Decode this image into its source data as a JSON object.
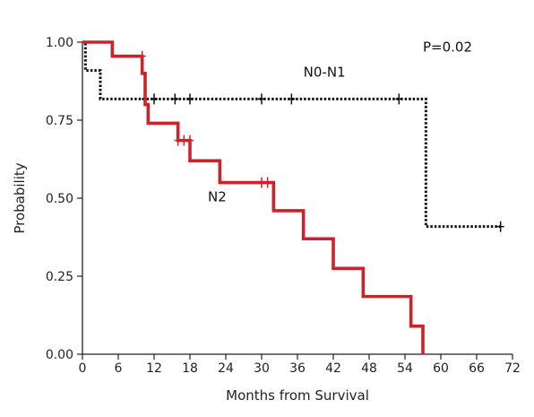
{
  "chart_data": {
    "type": "line",
    "subtype": "kaplan-meier",
    "title": "",
    "xlabel": "Months from Survival",
    "ylabel": "Probability",
    "xlim": [
      0,
      72
    ],
    "ylim": [
      0,
      1
    ],
    "x_ticks": [
      0,
      6,
      12,
      18,
      24,
      30,
      36,
      42,
      48,
      54,
      60,
      66,
      72
    ],
    "y_ticks": [
      0,
      0.25,
      0.5,
      0.75,
      1
    ],
    "y_tick_labels": [
      "0.00",
      "0.25",
      "0.50",
      "0.75",
      "1.00"
    ],
    "grid": false,
    "series": [
      {
        "name": "N0-N1",
        "color": "#111111",
        "line_style": "dotted",
        "steps": [
          [
            0,
            1.0
          ],
          [
            0.5,
            0.909
          ],
          [
            3,
            0.818
          ],
          [
            57.5,
            0.409
          ],
          [
            70,
            0.409
          ]
        ],
        "censored": [
          [
            10.5,
            0.818
          ],
          [
            12,
            0.818
          ],
          [
            15.5,
            0.818
          ],
          [
            18,
            0.818
          ],
          [
            30,
            0.818
          ],
          [
            35,
            0.818
          ],
          [
            53,
            0.818
          ],
          [
            70,
            0.409
          ]
        ]
      },
      {
        "name": "N2",
        "color": "#cc2229",
        "line_style": "solid",
        "steps": [
          [
            0,
            1.0
          ],
          [
            5,
            0.955
          ],
          [
            10,
            0.9
          ],
          [
            10.5,
            0.8
          ],
          [
            11,
            0.74
          ],
          [
            16,
            0.685
          ],
          [
            18,
            0.62
          ],
          [
            23,
            0.55
          ],
          [
            32,
            0.46
          ],
          [
            37,
            0.37
          ],
          [
            42,
            0.275
          ],
          [
            47,
            0.185
          ],
          [
            55,
            0.09
          ],
          [
            57,
            0.0
          ]
        ],
        "censored": [
          [
            10,
            0.955
          ],
          [
            16,
            0.685
          ],
          [
            17,
            0.685
          ],
          [
            18,
            0.685
          ],
          [
            30,
            0.55
          ],
          [
            31,
            0.55
          ]
        ]
      }
    ],
    "annotations": [
      {
        "text": "P=0.02",
        "x": 57,
        "y": 0.97
      },
      {
        "text": "N0-N1",
        "x": 37,
        "y": 0.89
      },
      {
        "text": "N2",
        "x": 21,
        "y": 0.49
      }
    ]
  }
}
